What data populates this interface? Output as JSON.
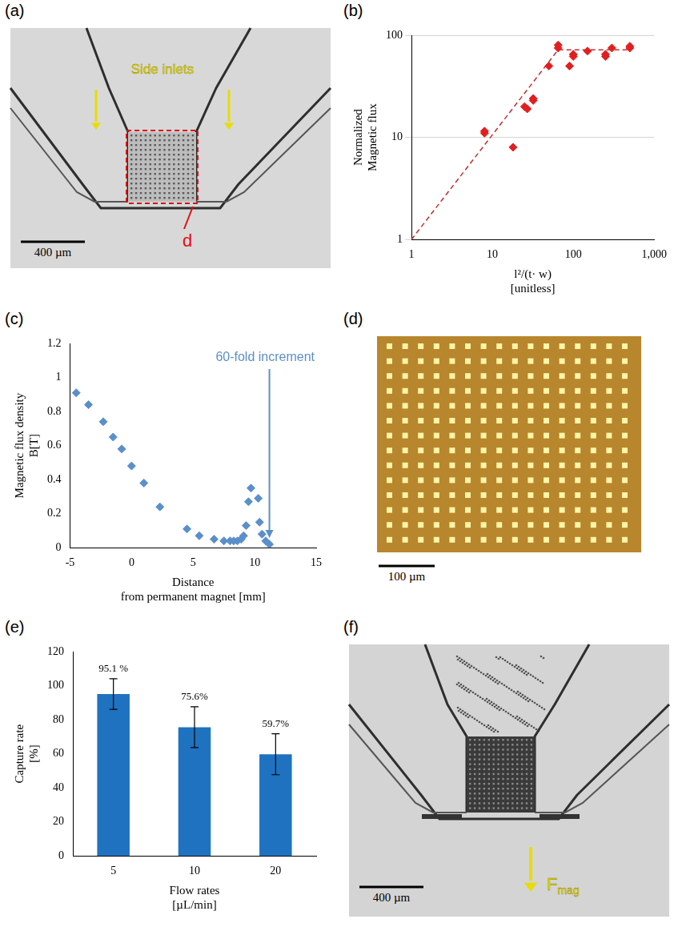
{
  "figure": {
    "a": {
      "letter": "(a)",
      "inlet_label": "Side inlets",
      "region_label": "d",
      "scale_bar": "400 µm"
    },
    "d": {
      "letter": "(d)",
      "scale_bar": "100 µm"
    },
    "f": {
      "letter": "(f)",
      "scale_bar": "400 µm",
      "force": {
        "symbol": "F",
        "subscript": "mag"
      }
    }
  },
  "chart_data": [
    {
      "panel": "(b)",
      "type": "scatter",
      "y_label": "Normalized\nMagnetic flux",
      "x_label": "l²/(t· w)\n[unitless]",
      "log": true,
      "grid": "y",
      "xlim": [
        1,
        1000
      ],
      "xticks": [
        1,
        10,
        100,
        {
          "value": 1000,
          "label": "1,000"
        }
      ],
      "ylim": [
        1,
        100
      ],
      "yticks": [
        1,
        10,
        100
      ],
      "series": [
        {
          "color": "#e02020",
          "marker": "diamond",
          "x": [
            8,
            8,
            18,
            25,
            27,
            32,
            32,
            50,
            65,
            65,
            90,
            100,
            100,
            150,
            250,
            250,
            300,
            500,
            500
          ],
          "values": [
            11.5,
            11,
            8,
            20,
            19,
            24,
            23,
            50,
            80,
            75,
            50,
            65,
            62,
            70,
            62,
            65,
            75,
            78,
            75
          ]
        },
        {
          "type": "line",
          "line_style": "dashed",
          "color": "#c03030",
          "x": [
            1,
            65,
            500
          ],
          "values": [
            1,
            72,
            72
          ]
        }
      ]
    },
    {
      "panel": "(c)",
      "type": "scatter",
      "y_label": "Magnetic flux density\nB[T]",
      "x_label": "Distance\nfrom permanent magnet [mm]",
      "annotation": "60-fold increment",
      "grid": false,
      "xlim": [
        -5,
        15
      ],
      "xticks": [
        -5,
        0,
        5,
        10,
        15
      ],
      "ylim": [
        0,
        1.2
      ],
      "yticks": [
        0,
        0.2,
        0.4,
        0.6,
        0.8,
        1,
        1.2
      ],
      "series": [
        {
          "color": "#5b8fc9",
          "marker": "diamond",
          "x": [
            -4.5,
            -3.5,
            -2.3,
            -1.5,
            -0.8,
            0,
            1,
            2.3,
            4.5,
            5.5,
            6.7,
            7.5,
            8,
            8.3,
            8.6,
            8.9,
            9.1,
            9.3,
            9.5,
            9.7,
            10.3,
            10.4,
            10.6,
            10.9,
            11.2
          ],
          "values": [
            0.91,
            0.84,
            0.74,
            0.65,
            0.58,
            0.48,
            0.38,
            0.24,
            0.11,
            0.07,
            0.05,
            0.04,
            0.04,
            0.04,
            0.04,
            0.05,
            0.07,
            0.13,
            0.27,
            0.35,
            0.29,
            0.15,
            0.08,
            0.04,
            0.02
          ]
        }
      ]
    },
    {
      "panel": "(e)",
      "type": "bar",
      "y_label": "Capture rate\n[%]",
      "x_label": "Flow rates\n[µL/min]",
      "categories": [
        "5",
        "10",
        "20"
      ],
      "values": [
        95.1,
        75.6,
        59.7
      ],
      "errors": [
        9,
        12,
        12
      ],
      "value_labels": [
        "95.1 %",
        "75.6%",
        "59.7%"
      ],
      "data_labels": true,
      "color": "#1f72c0",
      "grid": false,
      "ylim": [
        0,
        120
      ],
      "yticks": [
        0,
        20,
        40,
        60,
        80,
        100,
        120
      ]
    }
  ]
}
